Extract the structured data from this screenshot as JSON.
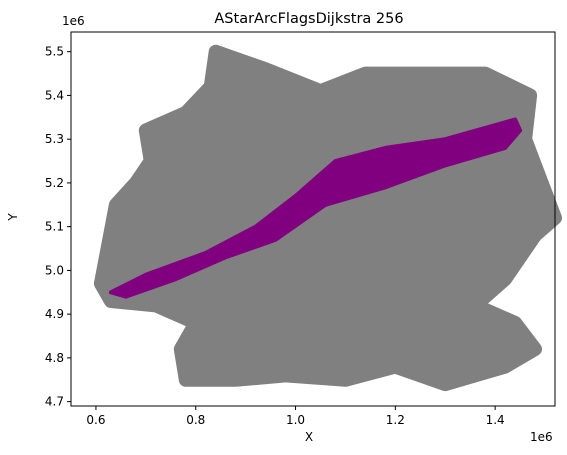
{
  "chart_data": {
    "type": "scatter",
    "title": "AStarArcFlagsDijkstra 256",
    "xlabel": "X",
    "ylabel": "Y",
    "x_offset_label": "1e6",
    "y_offset_label": "1e6",
    "xlim": [
      0.55,
      1.52
    ],
    "ylim": [
      4.69,
      5.545
    ],
    "x_ticks": [
      0.6,
      0.8,
      1.0,
      1.2,
      1.4
    ],
    "x_tick_labels": [
      "0.6",
      "0.8",
      "1.0",
      "1.2",
      "1.4"
    ],
    "y_ticks": [
      4.7,
      4.8,
      4.9,
      5.0,
      5.1,
      5.2,
      5.3,
      5.4,
      5.5
    ],
    "y_tick_labels": [
      "4.7",
      "4.8",
      "4.9",
      "5.0",
      "5.1",
      "5.2",
      "5.3",
      "5.4",
      "5.5"
    ],
    "grid": false,
    "legend": "none",
    "series": [
      {
        "color": "#808080",
        "outline": [
          [
            0.62,
            5.03
          ],
          [
            0.64,
            5.15
          ],
          [
            0.68,
            5.2
          ],
          [
            0.71,
            5.25
          ],
          [
            0.7,
            5.32
          ],
          [
            0.78,
            5.36
          ],
          [
            0.83,
            5.42
          ],
          [
            0.84,
            5.5
          ],
          [
            0.94,
            5.46
          ],
          [
            1.05,
            5.41
          ],
          [
            1.14,
            5.45
          ],
          [
            1.26,
            5.45
          ],
          [
            1.38,
            5.45
          ],
          [
            1.47,
            5.4
          ],
          [
            1.46,
            5.3
          ],
          [
            1.48,
            5.24
          ],
          [
            1.52,
            5.12
          ],
          [
            1.48,
            5.08
          ],
          [
            1.42,
            4.98
          ],
          [
            1.36,
            4.92
          ],
          [
            1.44,
            4.88
          ],
          [
            1.48,
            4.82
          ],
          [
            1.42,
            4.78
          ],
          [
            1.3,
            4.74
          ],
          [
            1.2,
            4.78
          ],
          [
            1.1,
            4.75
          ],
          [
            0.98,
            4.76
          ],
          [
            0.88,
            4.75
          ],
          [
            0.78,
            4.75
          ],
          [
            0.77,
            4.82
          ],
          [
            0.8,
            4.88
          ],
          [
            0.72,
            4.92
          ],
          [
            0.63,
            4.93
          ],
          [
            0.61,
            4.97
          ]
        ]
      },
      {
        "color": "#800080",
        "outline": [
          [
            0.63,
            4.95
          ],
          [
            0.7,
            4.99
          ],
          [
            0.82,
            5.04
          ],
          [
            0.92,
            5.1
          ],
          [
            1.0,
            5.17
          ],
          [
            1.08,
            5.25
          ],
          [
            1.18,
            5.28
          ],
          [
            1.3,
            5.3
          ],
          [
            1.44,
            5.345
          ],
          [
            1.45,
            5.32
          ],
          [
            1.42,
            5.28
          ],
          [
            1.3,
            5.24
          ],
          [
            1.18,
            5.19
          ],
          [
            1.06,
            5.15
          ],
          [
            0.96,
            5.07
          ],
          [
            0.86,
            5.03
          ],
          [
            0.76,
            4.98
          ],
          [
            0.66,
            4.94
          ]
        ]
      }
    ]
  }
}
